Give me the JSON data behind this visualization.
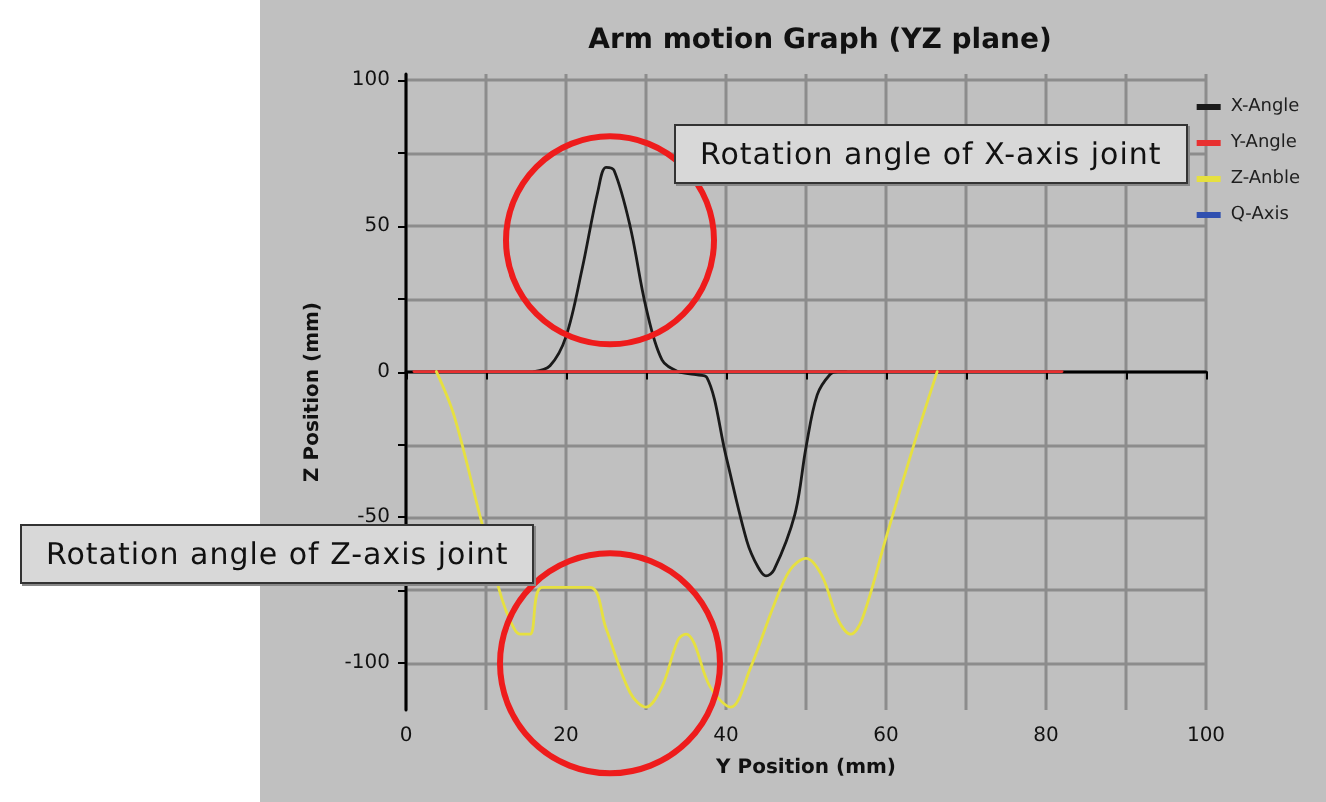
{
  "chart_data": {
    "type": "line",
    "title": "Arm motion Graph (YZ plane)",
    "xlabel": "Y Position (mm)",
    "ylabel": "Z Position (mm)",
    "xlim": [
      0,
      100
    ],
    "xticks": [
      0,
      {
        "value": 10,
        "label": null
      },
      20,
      {
        "value": 30,
        "label": null
      },
      40,
      {
        "value": 50,
        "label": null
      },
      60,
      {
        "value": 70,
        "label": null
      },
      80,
      {
        "value": 90,
        "label": null
      },
      100
    ],
    "ylim": [
      -116,
      102
    ],
    "yticks": [
      -100,
      {
        "value": -75,
        "label": null
      },
      -50,
      {
        "value": -25,
        "label": null
      },
      0,
      {
        "value": 25,
        "label": null
      },
      50,
      {
        "value": 75,
        "label": null
      },
      100
    ],
    "grid": true,
    "legend": "right",
    "marker": "none",
    "annotations": [
      "Rotation angle of X-axis joint",
      "Rotation angle of Z-axis joint"
    ],
    "series": [
      {
        "name": "X-Angle",
        "color": "#1a1a1a",
        "x": [
          16,
          18,
          20,
          22,
          24,
          25,
          26,
          28,
          30,
          32,
          34,
          36,
          37.6,
          40,
          42.6,
          44,
          45,
          46,
          48.6,
          50,
          51.4,
          53,
          54,
          55
        ],
        "values": [
          0,
          2,
          12,
          35,
          62,
          70,
          69,
          50,
          22,
          4,
          0,
          -1,
          -2,
          -29,
          -58,
          -67,
          -70,
          -68,
          -49,
          -26,
          -8,
          -1,
          0,
          0
        ]
      },
      {
        "name": "Y-Angle",
        "color": "#e83030",
        "x": [
          1,
          82
        ],
        "values": [
          0,
          0
        ]
      },
      {
        "name": "Z-Anble",
        "color": "#e6e040",
        "x": [
          3.8,
          6,
          9.3,
          12,
          13.5,
          14.3,
          15.5,
          17,
          23,
          25,
          28,
          30,
          32,
          34,
          35,
          36,
          38,
          40.6,
          43,
          46,
          48,
          50,
          52,
          54,
          55.6,
          57,
          60,
          63.6,
          66.4
        ],
        "values": [
          0,
          -15,
          -50,
          -78,
          -88,
          -90,
          -90,
          -74,
          -74,
          -88,
          -110,
          -115,
          -108,
          -92,
          -90,
          -93,
          -108,
          -115,
          -102,
          -80,
          -68,
          -64,
          -70,
          -85,
          -90,
          -85,
          -57,
          -24,
          0
        ]
      },
      {
        "name": "Q-Axis",
        "color": "#3050b0"
      }
    ]
  }
}
